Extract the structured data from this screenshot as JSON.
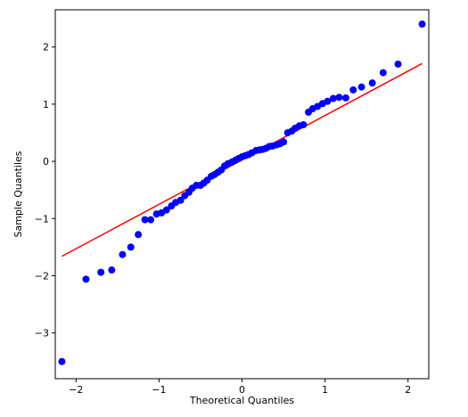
{
  "chart_data": {
    "type": "scatter",
    "title": "",
    "xlabel": "Theoretical Quantiles",
    "ylabel": "Sample Quantiles",
    "xlim": [
      -2.25,
      2.25
    ],
    "ylim": [
      -3.8,
      2.65
    ],
    "xticks": [
      -2,
      -1,
      0,
      1,
      2
    ],
    "yticks": [
      -3,
      -2,
      -1,
      0,
      1,
      2
    ],
    "xtick_labels": [
      "−2",
      "−1",
      "0",
      "1",
      "2"
    ],
    "ytick_labels": [
      "−3",
      "−2",
      "−1",
      "0",
      "1",
      "2"
    ],
    "grid": false,
    "legend": false,
    "colors": {
      "points": "#0000ff",
      "reference_line": "#ff0000",
      "axes": "#000000"
    },
    "reference_line": {
      "x": [
        -2.17,
        2.17
      ],
      "y": [
        -1.66,
        1.71
      ]
    },
    "series": [
      {
        "x": [
          -2.17,
          -1.88,
          -1.7,
          -1.57,
          -1.44,
          -1.34,
          -1.25,
          -1.17,
          -1.1,
          -1.03,
          -0.97,
          -0.91,
          -0.85,
          -0.8,
          -0.74,
          -0.69,
          -0.64,
          -0.6,
          -0.55,
          -0.5,
          -0.46,
          -0.42,
          -0.37,
          -0.33,
          -0.29,
          -0.25,
          -0.21,
          -0.17,
          -0.12,
          -0.08,
          -0.04,
          0.0,
          0.04,
          0.08,
          0.12,
          0.17,
          0.21,
          0.25,
          0.29,
          0.33,
          0.37,
          0.42,
          0.46,
          0.5,
          0.55,
          0.6,
          0.64,
          0.69,
          0.74,
          0.8,
          0.85,
          0.91,
          0.97,
          1.03,
          1.1,
          1.17,
          1.25,
          1.34,
          1.44,
          1.57,
          1.7,
          1.88,
          2.17
        ],
        "y": [
          -3.5,
          -2.06,
          -1.94,
          -1.9,
          -1.63,
          -1.5,
          -1.28,
          -1.02,
          -1.02,
          -0.92,
          -0.9,
          -0.85,
          -0.78,
          -0.72,
          -0.68,
          -0.6,
          -0.54,
          -0.47,
          -0.42,
          -0.42,
          -0.38,
          -0.33,
          -0.26,
          -0.23,
          -0.19,
          -0.15,
          -0.08,
          -0.04,
          -0.01,
          0.02,
          0.05,
          0.08,
          0.1,
          0.12,
          0.15,
          0.19,
          0.2,
          0.21,
          0.23,
          0.26,
          0.27,
          0.29,
          0.31,
          0.34,
          0.5,
          0.53,
          0.58,
          0.62,
          0.64,
          0.86,
          0.92,
          0.96,
          1.01,
          1.05,
          1.1,
          1.12,
          1.11,
          1.25,
          1.3,
          1.37,
          1.55,
          1.7,
          2.4
        ]
      }
    ]
  }
}
